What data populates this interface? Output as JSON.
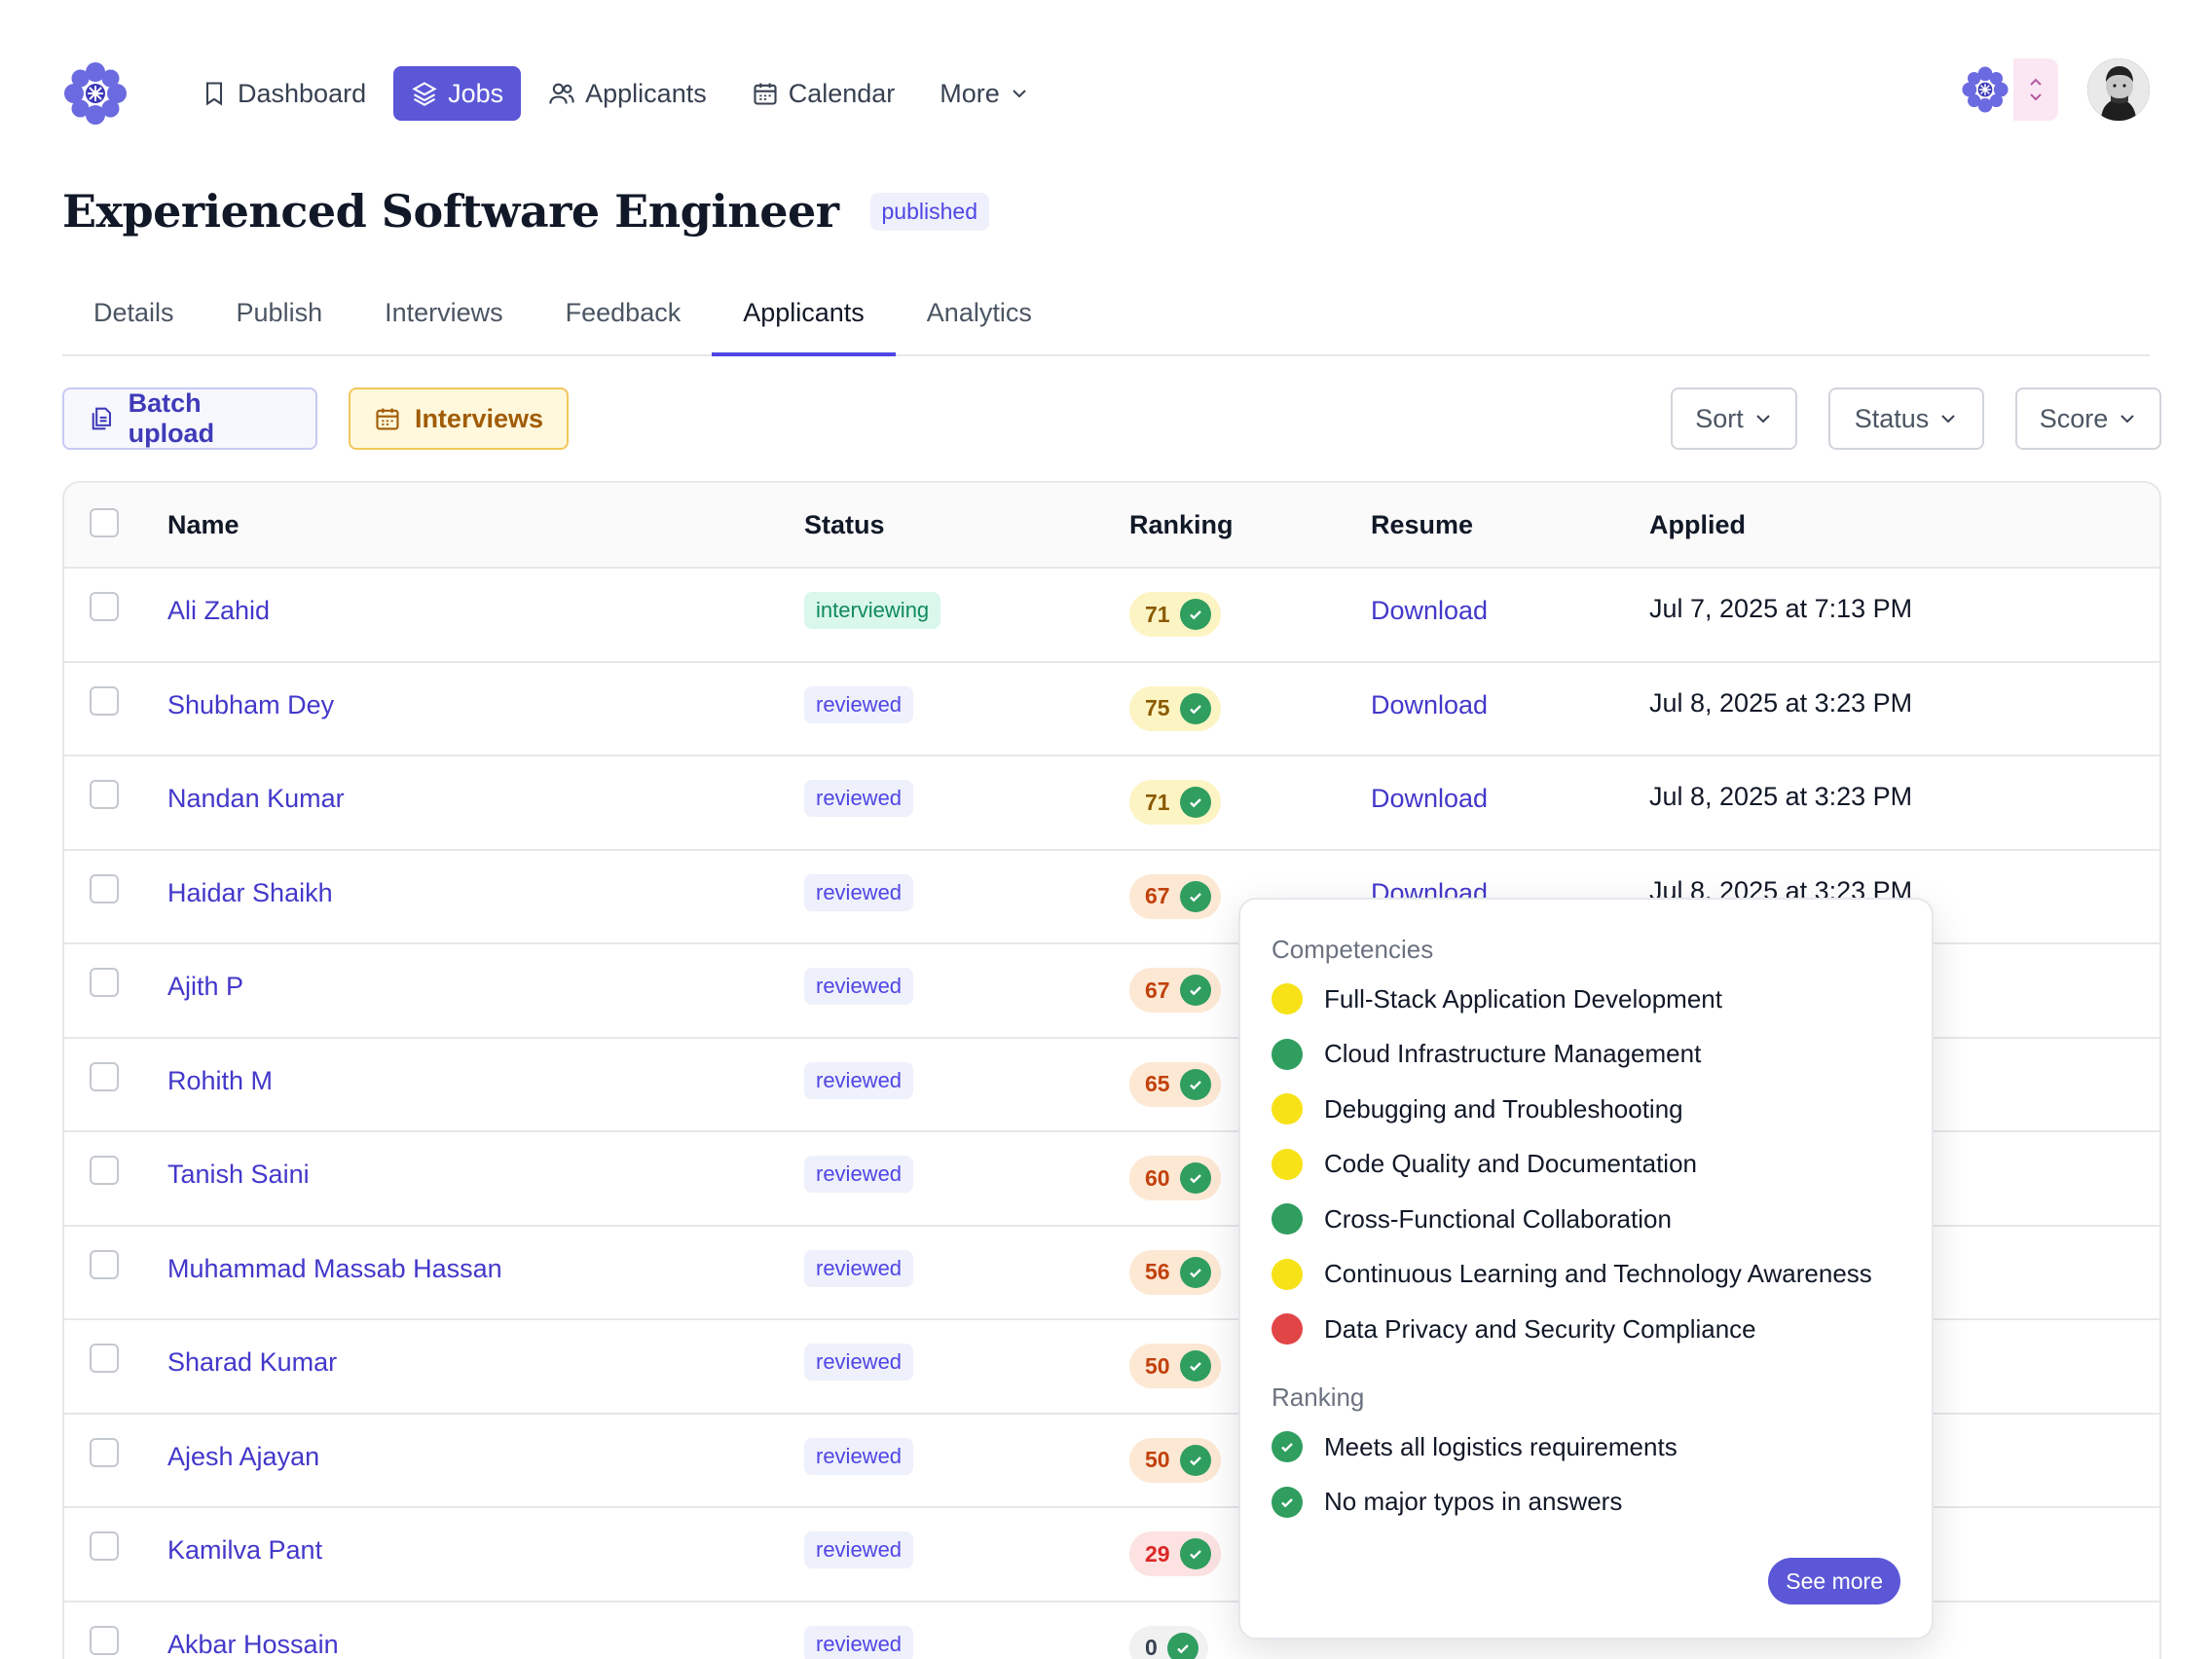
{
  "nav": {
    "items": [
      {
        "label": "Dashboard",
        "icon": "bookmark-icon"
      },
      {
        "label": "Jobs",
        "icon": "layers-icon"
      },
      {
        "label": "Applicants",
        "icon": "users-icon"
      },
      {
        "label": "Calendar",
        "icon": "calendar-icon"
      },
      {
        "label": "More",
        "icon": "chevron-down-icon"
      }
    ],
    "active": "Jobs"
  },
  "colors": {
    "accent": "#5b57d6",
    "link": "#4338ca",
    "success": "#2f9e5f",
    "warning": "#f7e218",
    "danger": "#e24545"
  },
  "job": {
    "title": "Experienced Software Engineer",
    "status": "published"
  },
  "tabs": [
    "Details",
    "Publish",
    "Interviews",
    "Feedback",
    "Applicants",
    "Analytics"
  ],
  "active_tab": "Applicants",
  "toolbar": {
    "batch_upload": "Batch upload",
    "interviews": "Interviews",
    "sort": "Sort",
    "status": "Status",
    "score": "Score"
  },
  "table": {
    "headers": {
      "name": "Name",
      "status": "Status",
      "ranking": "Ranking",
      "resume": "Resume",
      "applied": "Applied"
    },
    "rows": [
      {
        "name": "Ali Zahid",
        "status": "interviewing",
        "ranking": "71",
        "tone": "yellow",
        "resume": "Download",
        "applied": "Jul 7, 2025 at 7:13 PM"
      },
      {
        "name": "Shubham Dey",
        "status": "reviewed",
        "ranking": "75",
        "tone": "yellow",
        "resume": "Download",
        "applied": "Jul 8, 2025 at 3:23 PM"
      },
      {
        "name": "Nandan Kumar",
        "status": "reviewed",
        "ranking": "71",
        "tone": "yellow",
        "resume": "Download",
        "applied": "Jul 8, 2025 at 3:23 PM"
      },
      {
        "name": "Haidar Shaikh",
        "status": "reviewed",
        "ranking": "67",
        "tone": "orange",
        "resume": "Download",
        "applied": "Jul 8, 2025 at 3:23 PM"
      },
      {
        "name": "Ajith P",
        "status": "reviewed",
        "ranking": "67",
        "tone": "orange",
        "resume": "",
        "applied": ""
      },
      {
        "name": "Rohith M",
        "status": "reviewed",
        "ranking": "65",
        "tone": "orange",
        "resume": "",
        "applied": ""
      },
      {
        "name": "Tanish Saini",
        "status": "reviewed",
        "ranking": "60",
        "tone": "orange",
        "resume": "",
        "applied": ""
      },
      {
        "name": "Muhammad Massab Hassan",
        "status": "reviewed",
        "ranking": "56",
        "tone": "orange",
        "resume": "",
        "applied": ""
      },
      {
        "name": "Sharad Kumar",
        "status": "reviewed",
        "ranking": "50",
        "tone": "orange",
        "resume": "",
        "applied": ""
      },
      {
        "name": "Ajesh Ajayan",
        "status": "reviewed",
        "ranking": "50",
        "tone": "orange",
        "resume": "",
        "applied": ""
      },
      {
        "name": "Kamilva Pant",
        "status": "reviewed",
        "ranking": "29",
        "tone": "red",
        "resume": "",
        "applied": ""
      },
      {
        "name": "Akbar Hossain",
        "status": "reviewed",
        "ranking": "0",
        "tone": "gray",
        "resume": "",
        "applied": ""
      }
    ]
  },
  "popover": {
    "competencies_title": "Competencies",
    "competencies": [
      {
        "label": "Full-Stack Application Development",
        "level": "yellow"
      },
      {
        "label": "Cloud Infrastructure Management",
        "level": "green"
      },
      {
        "label": "Debugging and Troubleshooting",
        "level": "yellow"
      },
      {
        "label": "Code Quality and Documentation",
        "level": "yellow"
      },
      {
        "label": "Cross-Functional Collaboration",
        "level": "green"
      },
      {
        "label": "Continuous Learning and Technology Awareness",
        "level": "yellow"
      },
      {
        "label": "Data Privacy and Security Compliance",
        "level": "red"
      }
    ],
    "ranking_title": "Ranking",
    "ranking_checks": [
      "Meets all logistics requirements",
      "No major typos in answers"
    ],
    "see_more": "See more"
  }
}
